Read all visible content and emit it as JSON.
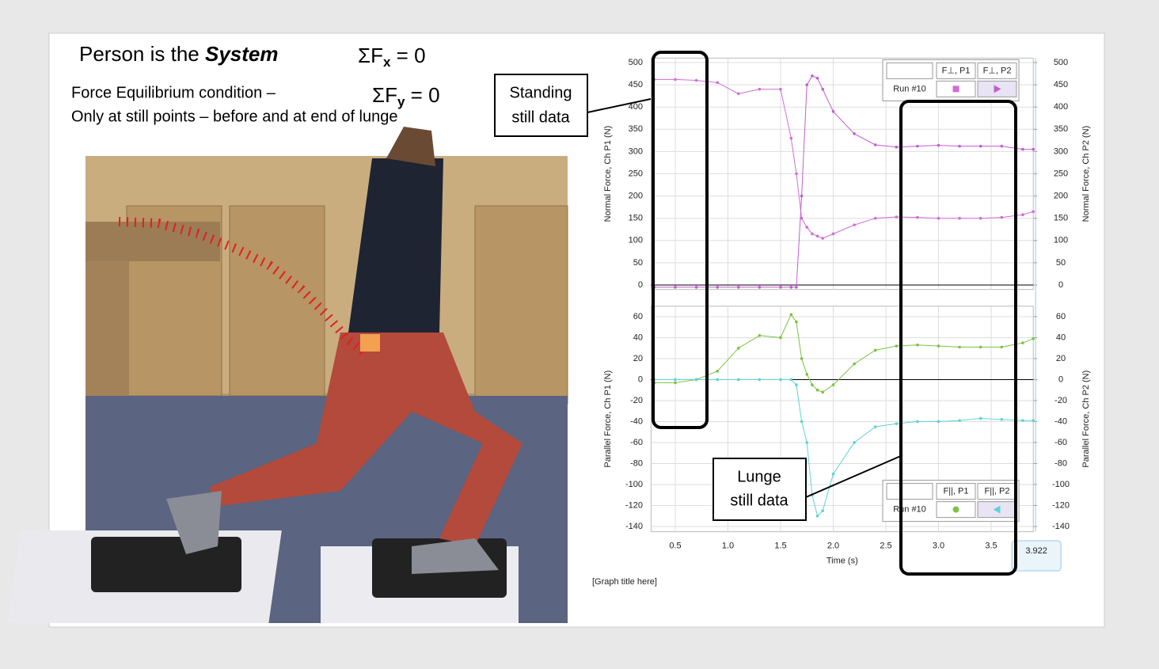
{
  "slide": {
    "title_plain": "Person is the ",
    "title_emph": "System",
    "sum_fx": {
      "sigma": "ΣF",
      "sub": "x",
      "rest": " = 0"
    },
    "sum_fy": {
      "sigma": "ΣF",
      "sub": "y",
      "rest": " = 0"
    },
    "line1": "Force Equilibrium condition –",
    "line2": "Only at still points – before and at end of lunge",
    "graph_title": "[Graph title here]",
    "callouts": [
      [
        "Standing",
        "still data"
      ],
      [
        "Lunge",
        "still data"
      ]
    ],
    "cursor": 3.922
  },
  "chart_data": [
    {
      "type": "line",
      "ylabel": "Normal Force, Ch P1 (N)",
      "y2label": "Normal Force, Ch P2 (N)",
      "run_label": "Run #10",
      "legend": "upper right",
      "grid": true,
      "x": [
        0.3,
        0.5,
        0.7,
        0.9,
        1.1,
        1.3,
        1.5,
        1.6,
        1.65,
        1.7,
        1.75,
        1.8,
        1.85,
        1.9,
        2.0,
        2.2,
        2.4,
        2.6,
        2.8,
        3.0,
        3.2,
        3.4,
        3.6,
        3.8,
        3.9
      ],
      "ylim": [
        -10,
        510
      ],
      "yticks": [
        0,
        50,
        100,
        150,
        200,
        250,
        300,
        350,
        400,
        450,
        500
      ],
      "y2lim": [
        -10,
        510
      ],
      "y2ticks": [
        0,
        50,
        100,
        150,
        200,
        250,
        300,
        350,
        400,
        450,
        500
      ],
      "series": [
        {
          "name": "F⊥, P1",
          "color": "#d36bd8",
          "marker": "square",
          "values": [
            462,
            462,
            460,
            455,
            430,
            440,
            440,
            330,
            250,
            150,
            130,
            115,
            110,
            105,
            115,
            135,
            150,
            153,
            152,
            150,
            150,
            150,
            152,
            158,
            165
          ]
        },
        {
          "name": "F⊥, P2",
          "color": "#c45ccf",
          "marker": "triangle",
          "axis": "y2",
          "values": [
            -5,
            -5,
            -5,
            -5,
            -5,
            -5,
            -5,
            -5,
            -5,
            200,
            450,
            470,
            465,
            440,
            390,
            340,
            315,
            310,
            312,
            314,
            312,
            312,
            312,
            305,
            305
          ]
        }
      ]
    },
    {
      "type": "line",
      "ylabel": "Parallel Force, Ch P1 (N)",
      "y2label": "Parallel Force, Ch P2 (N)",
      "xlabel": "Time (s)",
      "run_label": "Run #10",
      "legend": "lower right",
      "grid": true,
      "x": [
        0.3,
        0.5,
        0.7,
        0.9,
        1.1,
        1.3,
        1.5,
        1.6,
        1.65,
        1.7,
        1.75,
        1.8,
        1.85,
        1.9,
        2.0,
        2.2,
        2.4,
        2.6,
        2.8,
        3.0,
        3.2,
        3.4,
        3.6,
        3.8,
        3.9
      ],
      "xlim": [
        0.27,
        3.9
      ],
      "xticks": [
        0.5,
        {
          "value": 1,
          "label": "1.0"
        },
        1.5,
        {
          "value": 2,
          "label": "2.0"
        },
        2.5,
        {
          "value": 3,
          "label": "3.0"
        },
        3.5
      ],
      "ylim": [
        -145,
        70
      ],
      "yticks": [
        -140,
        -120,
        -100,
        -80,
        -60,
        -40,
        -20,
        0,
        20,
        40,
        60
      ],
      "y2lim": [
        -145,
        70
      ],
      "y2ticks": [
        -140,
        -120,
        -100,
        -80,
        -60,
        -40,
        -20,
        0,
        20,
        40,
        60
      ],
      "series": [
        {
          "name": "F||, P1",
          "color": "#7cc242",
          "marker": "circle",
          "values": [
            -3,
            -3,
            0,
            8,
            30,
            42,
            40,
            62,
            55,
            20,
            5,
            -5,
            -10,
            -12,
            -5,
            15,
            28,
            32,
            33,
            32,
            31,
            31,
            31,
            35,
            39
          ]
        },
        {
          "name": "F||, P2",
          "color": "#5dd3d3",
          "marker": "triangle-left",
          "axis": "y2",
          "values": [
            0,
            0,
            0,
            0,
            0,
            0,
            0,
            0,
            -5,
            -40,
            -60,
            -110,
            -130,
            -125,
            -90,
            -60,
            -45,
            -42,
            -40,
            -40,
            -39,
            -37,
            -38,
            -39,
            -39
          ]
        }
      ]
    }
  ]
}
